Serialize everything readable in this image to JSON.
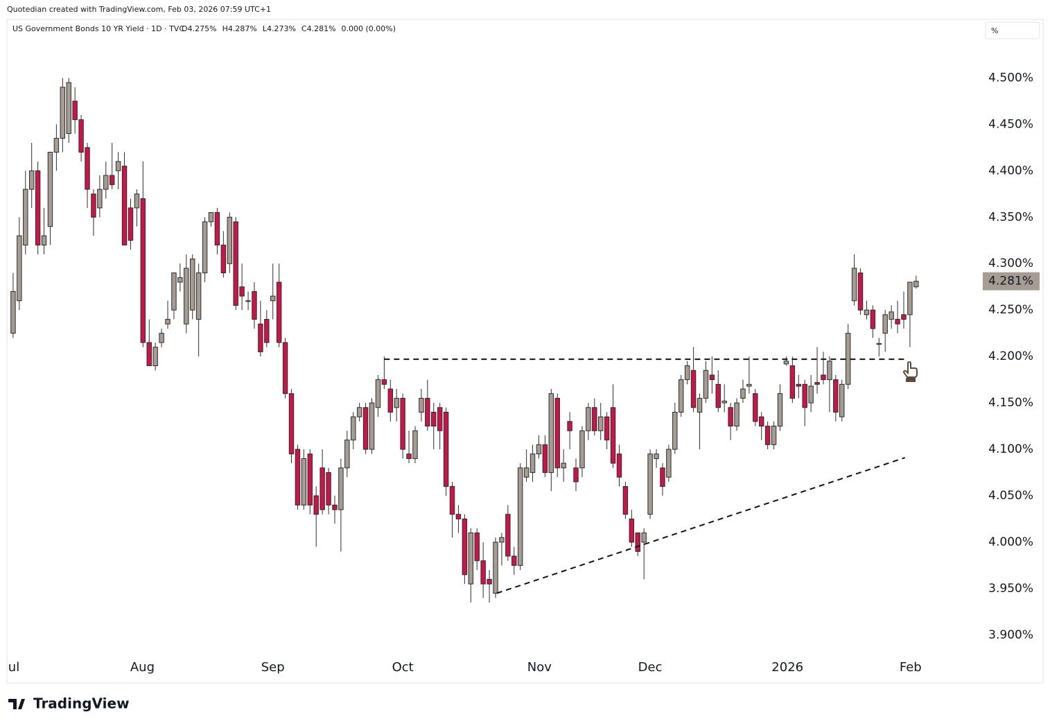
{
  "header": {
    "credit": "Quotedian created with TradingView.com, Feb 03, 2026 07:59 UTC+1",
    "symbol": "US Government Bonds 10 YR Yield · 1D · TVC",
    "stats": [
      "O4.275%",
      "H4.287%",
      "L4.273%",
      "C4.281%",
      "0.000 (0.00%)"
    ],
    "unit_box": "%",
    "logo": "TradingView"
  },
  "chart_data": {
    "type": "candlestick",
    "up_color": "#a59d93",
    "down_color": "#c8164b",
    "edge_color": "#2b2b2b",
    "open": [
      4.225,
      4.26,
      4.32,
      4.38,
      4.4,
      4.32,
      4.34,
      4.42,
      4.435,
      4.44,
      4.475,
      4.455,
      4.425,
      4.375,
      4.36,
      4.38,
      4.395,
      4.4,
      4.405,
      4.36,
      4.36,
      4.37,
      4.215,
      4.19,
      4.215,
      4.235,
      4.25,
      4.28,
      4.235,
      4.25,
      4.24,
      4.29,
      4.345,
      4.355,
      4.32,
      4.3,
      4.345,
      4.275,
      4.26,
      4.27,
      4.235,
      4.24,
      4.26,
      4.28,
      4.215,
      4.16,
      4.1,
      4.04,
      4.095,
      4.05,
      4.08,
      4.075,
      4.04,
      4.035,
      4.08,
      4.11,
      4.135,
      4.145,
      4.1,
      4.145,
      4.175,
      4.165,
      4.145,
      4.155,
      4.095,
      4.09,
      4.14,
      4.155,
      4.14,
      4.145,
      4.14,
      4.06,
      4.03,
      4.025,
      3.955,
      4.01,
      3.98,
      3.96,
      3.945,
      4.0,
      4.03,
      3.985,
      3.975,
      4.07,
      4.075,
      4.095,
      4.105,
      4.075,
      4.155,
      4.08,
      4.13,
      4.08,
      4.08,
      4.12,
      4.145,
      4.12,
      4.135,
      4.145,
      4.095,
      4.06,
      4.025,
      4.01,
      4.0,
      4.03,
      4.09,
      4.08,
      4.07,
      4.1,
      4.14,
      4.175,
      4.185,
      4.14,
      4.155,
      4.18,
      4.17,
      4.15,
      4.145,
      4.125,
      4.155,
      4.168,
      4.16,
      4.135,
      4.125,
      4.105,
      4.125,
      4.192,
      4.19,
      4.17,
      4.17,
      4.15,
      4.172,
      4.18,
      4.175,
      4.175,
      4.135,
      4.17,
      4.26,
      4.29,
      4.245,
      4.25,
      4.213,
      4.225,
      4.24,
      4.24,
      4.245,
      4.245,
      4.275
    ],
    "high": [
      4.29,
      4.35,
      4.4,
      4.43,
      4.41,
      4.36,
      4.42,
      4.45,
      4.5,
      4.5,
      4.49,
      4.46,
      4.43,
      4.38,
      4.395,
      4.41,
      4.43,
      4.42,
      4.42,
      4.37,
      4.38,
      4.41,
      4.24,
      4.215,
      4.23,
      4.26,
      4.29,
      4.3,
      4.31,
      4.31,
      4.3,
      4.35,
      4.355,
      4.36,
      4.335,
      4.355,
      4.35,
      4.3,
      4.27,
      4.28,
      4.26,
      4.25,
      4.3,
      4.3,
      4.22,
      4.165,
      4.105,
      4.1,
      4.1,
      4.06,
      4.1,
      4.08,
      4.05,
      4.09,
      4.12,
      4.14,
      4.15,
      4.15,
      4.155,
      4.18,
      4.2,
      4.175,
      4.165,
      4.16,
      4.12,
      4.125,
      4.165,
      4.175,
      4.15,
      4.15,
      4.145,
      4.065,
      4.04,
      4.03,
      4.015,
      4.015,
      4.0,
      3.97,
      4.005,
      4.01,
      4.04,
      3.995,
      4.085,
      4.1,
      4.105,
      4.115,
      4.115,
      4.165,
      4.16,
      4.1,
      4.14,
      4.09,
      4.125,
      4.15,
      4.155,
      4.15,
      4.14,
      4.17,
      4.105,
      4.065,
      4.035,
      4.01,
      4.015,
      4.1,
      4.1,
      4.085,
      4.105,
      4.15,
      4.18,
      4.195,
      4.21,
      4.16,
      4.195,
      4.2,
      4.185,
      4.17,
      4.15,
      4.155,
      4.175,
      4.2,
      4.165,
      4.14,
      4.13,
      4.13,
      4.17,
      4.2,
      4.2,
      4.18,
      4.175,
      4.18,
      4.21,
      4.205,
      4.2,
      4.18,
      4.175,
      4.235,
      4.31,
      4.295,
      4.26,
      4.255,
      4.22,
      4.25,
      4.255,
      4.26,
      4.27,
      4.28,
      4.287
    ],
    "low": [
      4.22,
      4.25,
      4.31,
      4.36,
      4.31,
      4.31,
      4.32,
      4.4,
      4.42,
      4.43,
      4.44,
      4.41,
      4.36,
      4.33,
      4.35,
      4.37,
      4.38,
      4.38,
      4.32,
      4.315,
      4.34,
      4.21,
      4.19,
      4.185,
      4.21,
      4.23,
      4.24,
      4.27,
      4.225,
      4.24,
      4.2,
      4.28,
      4.34,
      4.31,
      4.285,
      4.29,
      4.25,
      4.25,
      4.25,
      4.23,
      4.2,
      4.21,
      4.24,
      4.21,
      4.155,
      4.085,
      4.035,
      4.035,
      4.03,
      3.995,
      4.03,
      4.03,
      4.02,
      3.99,
      4.07,
      4.1,
      4.13,
      4.095,
      4.095,
      4.135,
      4.165,
      4.13,
      4.13,
      4.09,
      4.085,
      4.085,
      4.13,
      4.12,
      4.1,
      4.1,
      4.05,
      4.005,
      4.01,
      3.955,
      3.935,
      3.97,
      3.94,
      3.935,
      3.94,
      3.975,
      3.98,
      3.965,
      3.97,
      4.065,
      4.065,
      4.09,
      4.07,
      4.055,
      4.07,
      4.065,
      4.1,
      4.055,
      4.07,
      4.11,
      4.115,
      4.11,
      4.1,
      4.08,
      4.06,
      4.025,
      3.995,
      3.985,
      3.96,
      4.025,
      4.08,
      4.05,
      4.065,
      4.095,
      4.135,
      4.17,
      4.14,
      4.1,
      4.15,
      4.16,
      4.14,
      4.14,
      4.11,
      4.12,
      4.15,
      4.16,
      4.125,
      4.11,
      4.1,
      4.1,
      4.12,
      4.19,
      4.15,
      4.155,
      4.125,
      4.14,
      4.16,
      4.17,
      4.14,
      4.13,
      4.13,
      4.165,
      4.255,
      4.245,
      4.24,
      4.22,
      4.2,
      4.205,
      4.23,
      4.225,
      4.23,
      4.21,
      4.273
    ],
    "close": [
      4.27,
      4.33,
      4.38,
      4.4,
      4.32,
      4.33,
      4.42,
      4.435,
      4.49,
      4.495,
      4.455,
      4.42,
      4.38,
      4.35,
      4.38,
      4.395,
      4.385,
      4.41,
      4.32,
      4.325,
      4.375,
      4.215,
      4.19,
      4.21,
      4.225,
      4.24,
      4.29,
      4.285,
      4.295,
      4.305,
      4.29,
      4.345,
      4.355,
      4.32,
      4.29,
      4.35,
      4.255,
      4.265,
      4.26,
      4.24,
      4.205,
      4.215,
      4.265,
      4.215,
      4.16,
      4.095,
      4.04,
      4.09,
      4.04,
      4.03,
      4.035,
      4.04,
      4.035,
      4.08,
      4.11,
      4.135,
      4.145,
      4.1,
      4.15,
      4.175,
      4.17,
      4.14,
      4.155,
      4.1,
      4.09,
      4.12,
      4.155,
      4.125,
      4.125,
      4.12,
      4.06,
      4.03,
      4.025,
      3.965,
      4.01,
      3.98,
      3.955,
      3.955,
      4.0,
      4.005,
      3.985,
      3.975,
      4.08,
      4.08,
      4.095,
      4.105,
      4.075,
      4.16,
      4.08,
      4.085,
      4.12,
      4.065,
      4.12,
      4.145,
      4.12,
      4.135,
      4.11,
      4.085,
      4.07,
      4.03,
      4.0,
      3.99,
      4.01,
      4.095,
      4.095,
      4.06,
      4.1,
      4.14,
      4.175,
      4.19,
      4.145,
      4.155,
      4.185,
      4.175,
      4.145,
      4.152,
      4.125,
      4.15,
      4.165,
      4.17,
      4.13,
      4.125,
      4.105,
      4.125,
      4.16,
      4.195,
      4.155,
      4.168,
      4.145,
      4.168,
      4.17,
      4.175,
      4.195,
      4.14,
      4.17,
      4.225,
      4.295,
      4.25,
      4.25,
      4.23,
      4.214,
      4.245,
      4.248,
      4.235,
      4.24,
      4.28,
      4.281
    ],
    "xlim": [
      -1,
      157
    ],
    "ylim": [
      3.882,
      4.563
    ],
    "xticks": [
      {
        "value": -0.6,
        "label": "ul"
      },
      {
        "value": 20.9,
        "label": "Aug"
      },
      {
        "value": 42,
        "label": "Sep"
      },
      {
        "value": 63,
        "label": "Oct"
      },
      {
        "value": 85.1,
        "label": "Nov"
      },
      {
        "value": 103,
        "label": "Dec"
      },
      {
        "value": 125.2,
        "label": "2026"
      },
      {
        "value": 145.1,
        "label": "Feb"
      }
    ],
    "yticks": [
      {
        "value": 3.9,
        "label": "3.900%"
      },
      {
        "value": 3.95,
        "label": "3.950%"
      },
      {
        "value": 4.0,
        "label": "4.000%"
      },
      {
        "value": 4.05,
        "label": "4.050%"
      },
      {
        "value": 4.1,
        "label": "4.100%"
      },
      {
        "value": 4.15,
        "label": "4.150%"
      },
      {
        "value": 4.2,
        "label": "4.200%"
      },
      {
        "value": 4.25,
        "label": "4.250%"
      },
      {
        "value": 4.3,
        "label": "4.300%"
      },
      {
        "value": 4.35,
        "label": "4.350%"
      },
      {
        "value": 4.4,
        "label": "4.400%"
      },
      {
        "value": 4.45,
        "label": "4.450%"
      },
      {
        "value": 4.5,
        "label": "4.500%"
      }
    ],
    "last_price": {
      "value": 4.281,
      "label": "4.281%"
    },
    "drawings": [
      {
        "x": [
          60,
          144.2
        ],
        "y": [
          4.197,
          4.197
        ]
      },
      {
        "x": [
          78.2,
          144.2
        ],
        "y": [
          3.945,
          4.091
        ]
      }
    ]
  }
}
